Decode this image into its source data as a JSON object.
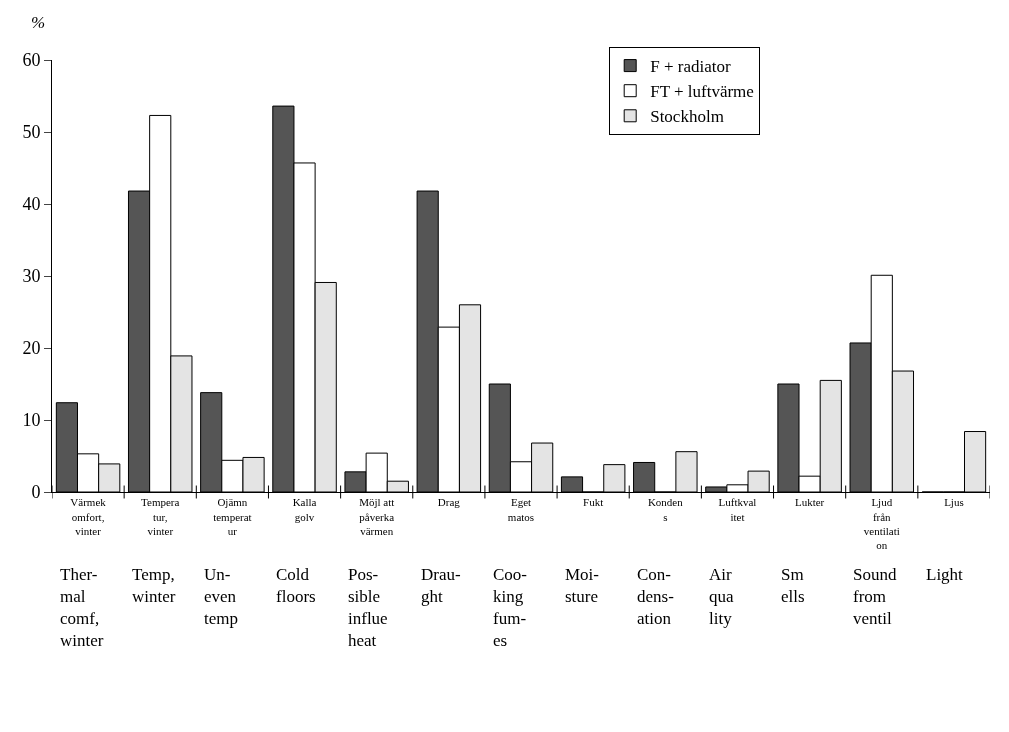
{
  "chart_data": {
    "type": "bar",
    "ylabel": "%",
    "categories": [
      "Värmek\nomfort,\nvinter",
      "Tempera\ntur,\nvinter",
      "Ojämn\ntemperat\nur",
      "Kalla\ngolv",
      "Möjl att\npåverka\nvärmen",
      "Drag",
      "Eget\nmatos",
      "Fukt",
      "Konden\ns",
      "Luftkval\nitet",
      "Lukter",
      "Ljud\nfrån\nventilati\non",
      "Ljus"
    ],
    "series": [
      {
        "name": "F + radiator",
        "color": "#555555",
        "values": [
          12.4,
          41.8,
          13.8,
          53.6,
          2.8,
          41.8,
          15.0,
          2.1,
          4.1,
          0.7,
          15.0,
          20.7,
          0
        ]
      },
      {
        "name": "FT + luftvärme",
        "color": "#ffffff",
        "values": [
          5.3,
          52.3,
          4.4,
          45.7,
          5.4,
          22.9,
          4.2,
          0,
          0,
          1.0,
          2.2,
          30.1,
          0
        ]
      },
      {
        "name": "Stockholm",
        "color": "#e4e4e4",
        "values": [
          3.9,
          18.9,
          4.8,
          29.1,
          1.5,
          26.0,
          6.8,
          3.8,
          5.6,
          2.9,
          15.5,
          16.8,
          8.4
        ]
      }
    ],
    "annotations": [
      "Ther-\nmal\ncomf,\nwinter",
      "Temp,\nwinter",
      "Un-\neven\ntemp",
      "Cold\nfloors",
      "Pos-\nsible\ninflue\nheat",
      "Drau-\nght",
      "Coo-\nking\nfum-\nes",
      "Moi-\nsture",
      "Con-\ndens-\nation",
      "Air\nqua\nlity",
      "Sm\nells",
      "Sound\nfrom\nventil",
      "Light"
    ],
    "ylim": [
      0,
      60
    ],
    "yticks": [
      0,
      10,
      20,
      30,
      40,
      50,
      60
    ],
    "grid": false,
    "legend": "top right"
  }
}
